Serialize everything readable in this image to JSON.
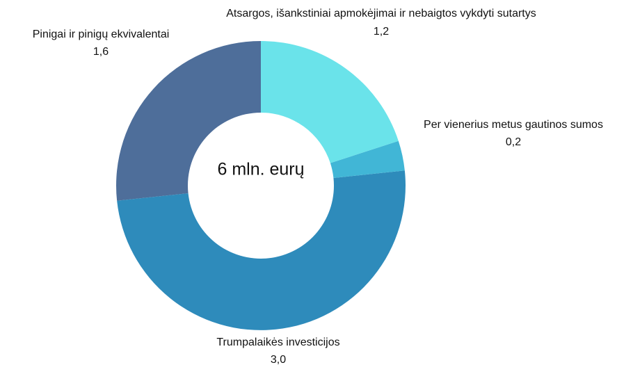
{
  "chart_data": {
    "type": "pie",
    "categories": [
      "Atsargos, išankstiniai apmokėjimai ir nebaigtos vykdyti sutartys",
      "Per vienerius metus gautinos sumos",
      "Trumpalaikės investicijos",
      "Pinigai ir pinigų ekvivalentai"
    ],
    "values": [
      1.2,
      0.2,
      3.0,
      1.6
    ],
    "value_labels": [
      "1,2",
      "0,2",
      "3,0",
      "1,6"
    ],
    "colors": [
      "#6ae3ea",
      "#41b6d6",
      "#2e8bbb",
      "#4e6e9a"
    ],
    "center_text": "6 mln. eurų"
  }
}
